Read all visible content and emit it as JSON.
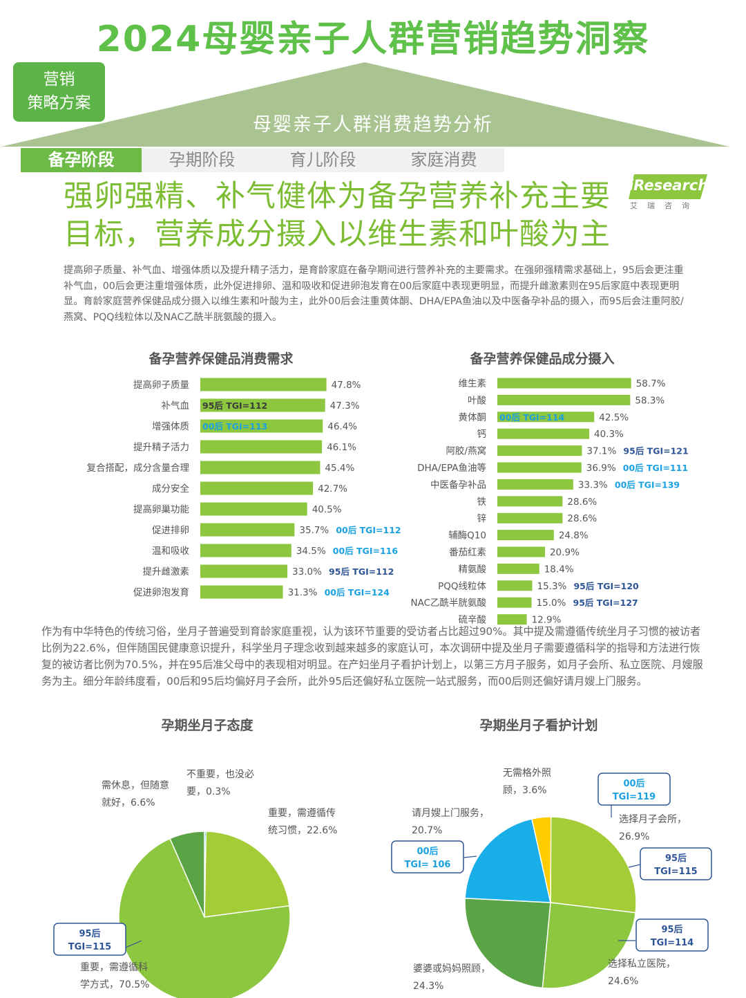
{
  "header": {
    "main_title": "2024母婴亲子人群营销趋势洞察",
    "badge": "营销\n策略方案",
    "subtitle": "母婴亲子人群消费趋势分析"
  },
  "tabs": [
    {
      "label": "备孕阶段",
      "active": true
    },
    {
      "label": "孕期阶段",
      "active": false
    },
    {
      "label": "育儿阶段",
      "active": false
    },
    {
      "label": "家庭消费",
      "active": false
    }
  ],
  "slide": {
    "title_line1": "强卵强精、补气健体为备孕营养补充主要",
    "title_line2": "目标，营养成分摄入以维生素和叶酸为主",
    "logo": "iResearch",
    "logo_sub": "艾瑞咨询",
    "paragraph1": "提高卵子质量、补气血、增强体质以及提升精子活力，是育龄家庭在备孕期间进行营养补充的主要需求。在强卵强精需求基础上，95后会更注重补气血，00后会更注重增强体质，此外促进排卵、温和吸收和促进卵泡发育在00后家庭中表现更明显，而提升雌激素则在95后家庭中表现更明显。育龄家庭营养保健品成分摄入以维生素和叶酸为主，此外00后会注重黄体酮、DHA/EPA鱼油以及中医备孕补品的摄入，而95后会注重阿胶/燕窝、PQQ线粒体以及NAC乙酰半胱氨酸的摄入。",
    "paragraph2": "作为有中华特色的传统习俗，坐月子普遍受到育龄家庭重视，认为该环节重要的受访者占比超过90%。其中提及需遵循传统坐月子习惯的被访者比例为22.6%，但伴随国民健康意识提升，科学坐月子理念收到越来越多的家庭认可，本次调研中提及坐月子需要遵循科学的指导和方法进行恢复的被访者比例为70.5%，并在95后准父母中的表现相对明显。在产妇坐月子看护计划上，以第三方月子服务，如月子会所、私立医院、月嫂服务为主。细分年龄纬度看，00后和95后均偏好月子会所，此外95后还偏好私立医院一站式服务，而00后则还偏好请月嫂上门服务。"
  },
  "colors": {
    "bar_green": "#8dc63f",
    "tgi_blue": "#1ba1e2",
    "title_green": "#7cbd33",
    "pie_dark": "#5ba445",
    "pie_yellow": "#ffcc00",
    "pie_blue": "#1aaee8"
  },
  "chart_data": [
    {
      "type": "bar",
      "orientation": "horizontal",
      "title": "备孕营养保健品消费需求",
      "categories": [
        "提高卵子质量",
        "补气血",
        "增强体质",
        "提升精子活力",
        "复合搭配，成分含量合理",
        "成分安全",
        "提高卵巢功能",
        "促进排卵",
        "温和吸收",
        "提升雌激素",
        "促进卵泡发育"
      ],
      "values": [
        47.8,
        47.3,
        46.4,
        46.1,
        45.4,
        42.7,
        40.5,
        35.7,
        34.5,
        33.0,
        31.3
      ],
      "value_labels": [
        "47.8%",
        "47.3%",
        "46.4%",
        "46.1%",
        "45.4%",
        "42.7%",
        "40.5%",
        "35.7%",
        "34.5%",
        "33.0%",
        "31.3%"
      ],
      "tgi": [
        "",
        "95后 TGI=112",
        "00后 TGI=113",
        "",
        "",
        "",
        "",
        "00后 TGI=112",
        "00后 TGI=116",
        "95后 TGI=112",
        "00后 TGI=124"
      ],
      "unit": "%"
    },
    {
      "type": "bar",
      "orientation": "horizontal",
      "title": "备孕营养保健品成分摄入",
      "categories": [
        "维生素",
        "叶酸",
        "黄体酮",
        "钙",
        "阿胶/燕窝",
        "DHA/EPA鱼油等",
        "中医备孕补品",
        "铁",
        "锌",
        "辅酶Q10",
        "番茄红素",
        "精氨酸",
        "PQQ线粒体",
        "NAC乙酰半胱氨酸",
        "硫辛酸"
      ],
      "values": [
        58.7,
        58.3,
        42.5,
        40.3,
        37.1,
        36.9,
        33.3,
        28.6,
        28.6,
        24.8,
        20.9,
        18.4,
        15.3,
        15.0,
        12.9
      ],
      "value_labels": [
        "58.7%",
        "58.3%",
        "42.5%",
        "40.3%",
        "37.1%",
        "36.9%",
        "33.3%",
        "28.6%",
        "28.6%",
        "24.8%",
        "20.9%",
        "18.4%",
        "15.3%",
        "15.0%",
        "12.9%"
      ],
      "tgi": [
        "",
        "",
        "00后 TGI=114",
        "",
        "95后 TGI=121",
        "00后 TGI=111",
        "00后 TGI=139",
        "",
        "",
        "",
        "",
        "",
        "95后 TGI=120",
        "95后 TGI=127",
        ""
      ],
      "unit": "%"
    },
    {
      "type": "pie",
      "title": "孕期坐月子态度",
      "slices": [
        {
          "label": "不重要，也没必要",
          "value": 0.3,
          "value_label": "0.3%"
        },
        {
          "label": "重要，需遵循传统习惯",
          "value": 22.6,
          "value_label": "22.6%"
        },
        {
          "label": "重要，需遵循科学方式",
          "value": 70.5,
          "value_label": "70.5%"
        },
        {
          "label": "需休息，但随意就好",
          "value": 6.6,
          "value_label": "6.6%"
        }
      ],
      "callouts": [
        {
          "slice": "重要，需遵循科学方式",
          "lines": [
            "95后",
            "TGI=115"
          ]
        }
      ]
    },
    {
      "type": "pie",
      "title": "孕期坐月子看护计划",
      "slices": [
        {
          "label": "选择月子会所",
          "value": 26.9,
          "value_label": "26.9%"
        },
        {
          "label": "选择私立医院",
          "value": 24.6,
          "value_label": "24.6%"
        },
        {
          "label": "婆婆或妈妈照顾",
          "value": 24.3,
          "value_label": "24.3%"
        },
        {
          "label": "请月嫂上门服务",
          "value": 20.7,
          "value_label": "20.7%"
        },
        {
          "label": "无需格外照顾",
          "value": 3.6,
          "value_label": "3.6%"
        }
      ],
      "callouts": [
        {
          "slice": "选择月子会所",
          "lines": [
            "00后",
            "TGI=119"
          ]
        },
        {
          "slice": "选择月子会所",
          "lines": [
            "95后",
            "TGI=115"
          ]
        },
        {
          "slice": "选择私立医院",
          "lines": [
            "95后",
            "TGI=114"
          ]
        },
        {
          "slice": "请月嫂上门服务",
          "lines": [
            "00后",
            "TGI= 106"
          ]
        }
      ]
    }
  ]
}
